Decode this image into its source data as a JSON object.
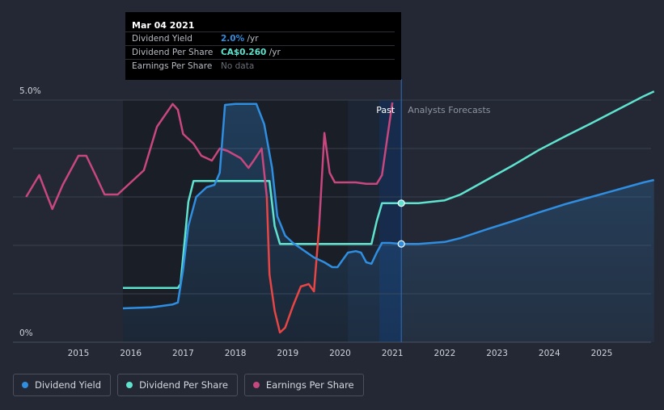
{
  "tooltip": {
    "date": "Mar 04 2021",
    "rows": [
      {
        "label": "Dividend Yield",
        "value": "2.0%",
        "unit": "/yr"
      },
      {
        "label": "Dividend Per Share",
        "value": "CA$0.260",
        "unit": "/yr"
      },
      {
        "label": "Earnings Per Share",
        "value": "No data",
        "unit": ""
      }
    ]
  },
  "legend": [
    {
      "label": "Dividend Yield",
      "color": "#2f8ee0"
    },
    {
      "label": "Dividend Per Share",
      "color": "#5fe3cf"
    },
    {
      "label": "Earnings Per Share",
      "color": "#c8477f"
    }
  ],
  "chart_data": {
    "type": "line",
    "region_labels": {
      "past": "Past",
      "forecast": "Analysts Forecasts"
    },
    "x_ticks": [
      2015,
      2016,
      2017,
      2018,
      2019,
      2020,
      2021,
      2022,
      2023,
      2024,
      2025
    ],
    "x_range": [
      2014.0,
      2026.0
    ],
    "ylim": [
      0,
      5.0
    ],
    "y_tick_labels": [
      {
        "value": 0,
        "label": "0%"
      },
      {
        "value": 5.0,
        "label": "5.0%"
      }
    ],
    "gridlines": [
      1.0,
      2.0,
      3.0,
      4.0,
      5.0
    ],
    "marker_x": 2021.17,
    "colors": {
      "yield": "#2f8ee0",
      "dps": "#5fe3cf",
      "eps": "#c8477f",
      "eps_negative": "#e84545"
    },
    "series": [
      {
        "name": "Dividend Yield",
        "key": "yield",
        "points": [
          [
            2015.85,
            0.7
          ],
          [
            2016.4,
            0.72
          ],
          [
            2016.8,
            0.78
          ],
          [
            2016.9,
            0.82
          ],
          [
            2017.0,
            1.5
          ],
          [
            2017.1,
            2.4
          ],
          [
            2017.25,
            3.0
          ],
          [
            2017.45,
            3.2
          ],
          [
            2017.6,
            3.25
          ],
          [
            2017.7,
            3.5
          ],
          [
            2017.8,
            4.9
          ],
          [
            2018.0,
            4.92
          ],
          [
            2018.2,
            4.92
          ],
          [
            2018.4,
            4.92
          ],
          [
            2018.55,
            4.5
          ],
          [
            2018.7,
            3.6
          ],
          [
            2018.8,
            2.6
          ],
          [
            2018.95,
            2.2
          ],
          [
            2019.1,
            2.05
          ],
          [
            2019.3,
            1.9
          ],
          [
            2019.5,
            1.75
          ],
          [
            2019.7,
            1.65
          ],
          [
            2019.85,
            1.55
          ],
          [
            2019.95,
            1.55
          ],
          [
            2020.05,
            1.7
          ],
          [
            2020.15,
            1.85
          ],
          [
            2020.3,
            1.88
          ],
          [
            2020.4,
            1.85
          ],
          [
            2020.5,
            1.65
          ],
          [
            2020.6,
            1.62
          ],
          [
            2020.7,
            1.85
          ],
          [
            2020.8,
            2.05
          ],
          [
            2020.95,
            2.05
          ],
          [
            2021.17,
            2.03
          ],
          [
            2021.5,
            2.03
          ],
          [
            2022.0,
            2.07
          ],
          [
            2022.3,
            2.15
          ],
          [
            2022.8,
            2.33
          ],
          [
            2023.3,
            2.5
          ],
          [
            2023.8,
            2.68
          ],
          [
            2024.3,
            2.85
          ],
          [
            2024.8,
            3.0
          ],
          [
            2025.3,
            3.15
          ],
          [
            2025.8,
            3.3
          ],
          [
            2026.0,
            3.35
          ]
        ]
      },
      {
        "name": "Dividend Per Share",
        "key": "dps",
        "points": [
          [
            2015.85,
            1.12
          ],
          [
            2016.6,
            1.12
          ],
          [
            2016.9,
            1.12
          ],
          [
            2016.95,
            1.2
          ],
          [
            2017.1,
            2.9
          ],
          [
            2017.2,
            3.33
          ],
          [
            2017.5,
            3.33
          ],
          [
            2018.0,
            3.33
          ],
          [
            2018.5,
            3.33
          ],
          [
            2018.65,
            3.33
          ],
          [
            2018.75,
            2.4
          ],
          [
            2018.85,
            2.03
          ],
          [
            2019.3,
            2.03
          ],
          [
            2020.0,
            2.03
          ],
          [
            2020.5,
            2.03
          ],
          [
            2020.6,
            2.03
          ],
          [
            2020.7,
            2.5
          ],
          [
            2020.8,
            2.87
          ],
          [
            2021.17,
            2.87
          ],
          [
            2021.5,
            2.87
          ],
          [
            2022.0,
            2.93
          ],
          [
            2022.3,
            3.05
          ],
          [
            2022.8,
            3.35
          ],
          [
            2023.3,
            3.65
          ],
          [
            2023.8,
            3.97
          ],
          [
            2024.3,
            4.25
          ],
          [
            2024.8,
            4.52
          ],
          [
            2025.3,
            4.8
          ],
          [
            2025.8,
            5.08
          ],
          [
            2026.0,
            5.18
          ]
        ]
      },
      {
        "name": "Earnings Per Share",
        "key": "eps",
        "points": [
          [
            2014.0,
            3.0
          ],
          [
            2014.25,
            3.45
          ],
          [
            2014.5,
            2.75
          ],
          [
            2014.7,
            3.25
          ],
          [
            2015.0,
            3.85
          ],
          [
            2015.15,
            3.85
          ],
          [
            2015.35,
            3.4
          ],
          [
            2015.5,
            3.05
          ],
          [
            2015.75,
            3.05
          ],
          [
            2016.0,
            3.3
          ],
          [
            2016.25,
            3.55
          ],
          [
            2016.5,
            4.45
          ],
          [
            2016.8,
            4.92
          ],
          [
            2016.9,
            4.8
          ],
          [
            2017.0,
            4.3
          ],
          [
            2017.2,
            4.1
          ],
          [
            2017.35,
            3.85
          ],
          [
            2017.55,
            3.75
          ],
          [
            2017.7,
            4.0
          ],
          [
            2017.85,
            3.95
          ],
          [
            2018.1,
            3.8
          ],
          [
            2018.25,
            3.6
          ],
          [
            2018.35,
            3.75
          ],
          [
            2018.5,
            4.0
          ],
          [
            2018.6,
            3.0
          ],
          [
            2018.65,
            1.4
          ],
          [
            2018.75,
            0.65
          ],
          [
            2018.85,
            0.2
          ],
          [
            2018.95,
            0.3
          ],
          [
            2019.1,
            0.75
          ],
          [
            2019.25,
            1.15
          ],
          [
            2019.4,
            1.2
          ],
          [
            2019.5,
            1.05
          ],
          [
            2019.6,
            2.4
          ],
          [
            2019.7,
            4.32
          ],
          [
            2019.8,
            3.5
          ],
          [
            2019.9,
            3.3
          ],
          [
            2020.0,
            3.3
          ],
          [
            2020.3,
            3.3
          ],
          [
            2020.5,
            3.27
          ],
          [
            2020.7,
            3.27
          ],
          [
            2020.8,
            3.45
          ],
          [
            2020.9,
            4.2
          ],
          [
            2021.0,
            4.95
          ]
        ]
      }
    ]
  }
}
